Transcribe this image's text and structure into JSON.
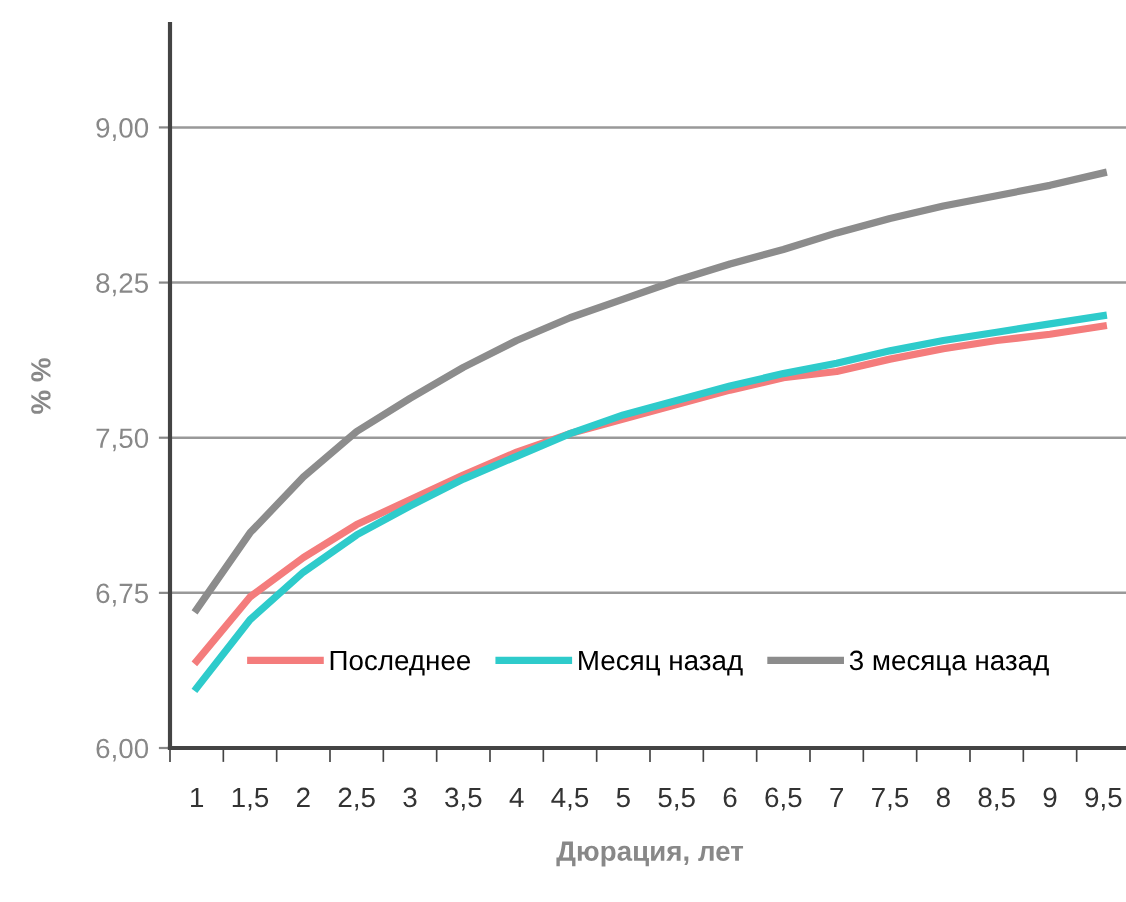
{
  "chart_data": {
    "type": "line",
    "xlabel": "Дюрация, лет",
    "ylabel": "% %",
    "categories": [
      "1",
      "1,5",
      "2",
      "2,5",
      "3",
      "3,5",
      "4",
      "4,5",
      "5",
      "5,5",
      "6",
      "6,5",
      "7",
      "7,5",
      "8",
      "8,5",
      "9",
      "9,5"
    ],
    "series": [
      {
        "name": "Последнее",
        "color": "#f47c7c",
        "values": [
          6.42,
          6.73,
          6.92,
          7.08,
          7.2,
          7.32,
          7.43,
          7.52,
          7.59,
          7.66,
          7.73,
          7.79,
          7.82,
          7.88,
          7.93,
          7.97,
          8.0,
          8.04
        ]
      },
      {
        "name": "Месяц назад",
        "color": "#2ecbcb",
        "values": [
          6.29,
          6.62,
          6.85,
          7.03,
          7.17,
          7.3,
          7.41,
          7.52,
          7.61,
          7.68,
          7.75,
          7.81,
          7.86,
          7.92,
          7.97,
          8.01,
          8.05,
          8.09
        ]
      },
      {
        "name": "3 месяца назад",
        "color": "#8c8c8c",
        "values": [
          6.67,
          7.04,
          7.31,
          7.53,
          7.69,
          7.84,
          7.97,
          8.08,
          8.17,
          8.26,
          8.34,
          8.41,
          8.49,
          8.56,
          8.62,
          8.67,
          8.72,
          8.78
        ]
      }
    ],
    "ylim": [
      6,
      9.5
    ],
    "yticks": [
      {
        "value": 6,
        "label": "6,00"
      },
      {
        "value": 6.75,
        "label": "6,75"
      },
      {
        "value": 7.5,
        "label": "7,50"
      },
      {
        "value": 8.25,
        "label": "8,25"
      },
      {
        "value": 9,
        "label": "9,00"
      }
    ],
    "grid": "y",
    "legend": "bottom",
    "marker": "none",
    "line_style": "solid"
  }
}
